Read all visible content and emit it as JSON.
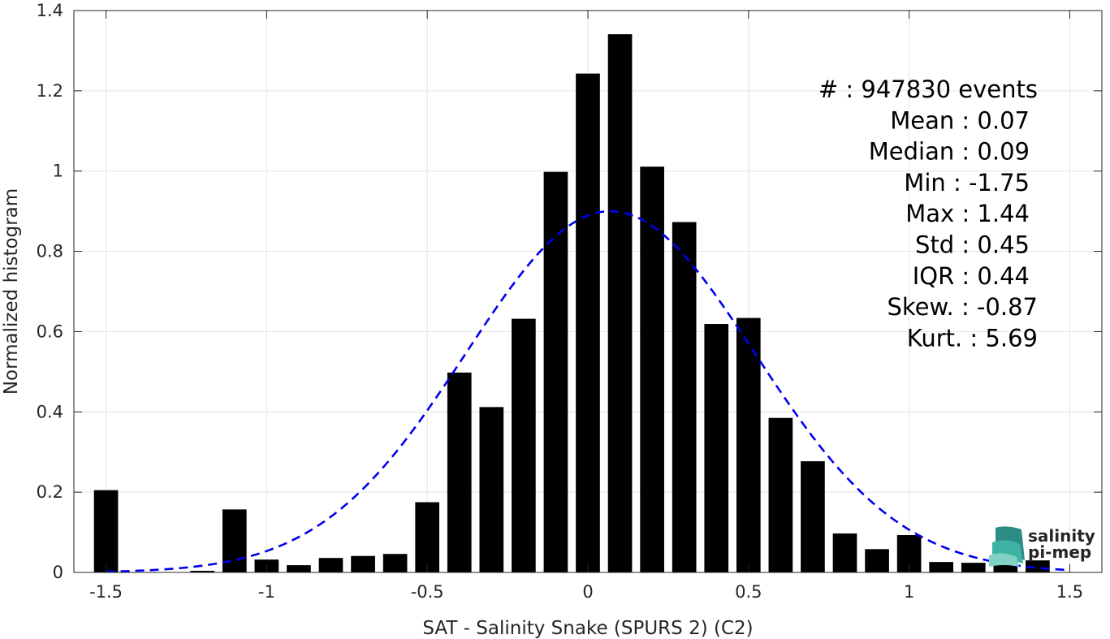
{
  "chart_data": {
    "type": "bar",
    "xlabel": "SAT - Salinity Snake (SPURS 2) (C2)",
    "ylabel": "Normalized histogram",
    "xlim": [
      -1.6,
      1.6
    ],
    "ylim": [
      0,
      1.4
    ],
    "xticks": [
      "-1.5",
      "-1",
      "-0.5",
      "0",
      "0.5",
      "1",
      "1.5"
    ],
    "yticks": [
      "0",
      "0.2",
      "0.4",
      "0.6",
      "0.8",
      "1",
      "1.2",
      "1.4"
    ],
    "grid": true,
    "bar_width": 0.075,
    "bar_color": "#000000",
    "x": [
      -1.5,
      -1.2,
      -1.1,
      -1.0,
      -0.9,
      -0.8,
      -0.7,
      -0.6,
      -0.5,
      -0.4,
      -0.3,
      -0.2,
      -0.1,
      0.0,
      0.1,
      0.2,
      0.3,
      0.4,
      0.5,
      0.6,
      0.7,
      0.8,
      0.9,
      1.0,
      1.1,
      1.2,
      1.3,
      1.4
    ],
    "values": [
      0.205,
      0.004,
      0.157,
      0.032,
      0.018,
      0.036,
      0.041,
      0.046,
      0.175,
      0.498,
      0.412,
      0.632,
      0.998,
      1.243,
      1.341,
      1.011,
      0.873,
      0.619,
      0.634,
      0.385,
      0.277,
      0.097,
      0.058,
      0.093,
      0.026,
      0.024,
      0.021,
      0.03
    ],
    "fit_curve": {
      "style": "dashed",
      "color": "#0000ee",
      "mean": 0.07,
      "std": 0.45,
      "peak": 0.9
    }
  },
  "stats": [
    "#  : 947830 events",
    "Mean : 0.07",
    "Median : 0.09",
    "Min : -1.75",
    "Max : 1.44",
    "Std : 0.45",
    "IQR : 0.44",
    "Skew. : -0.87",
    "Kurt. : 5.69"
  ],
  "logo": {
    "line1": "salinity",
    "line2": "pi-mep",
    "colors": {
      "line1": "#1aa58f",
      "line2": "#1f5c55"
    }
  }
}
